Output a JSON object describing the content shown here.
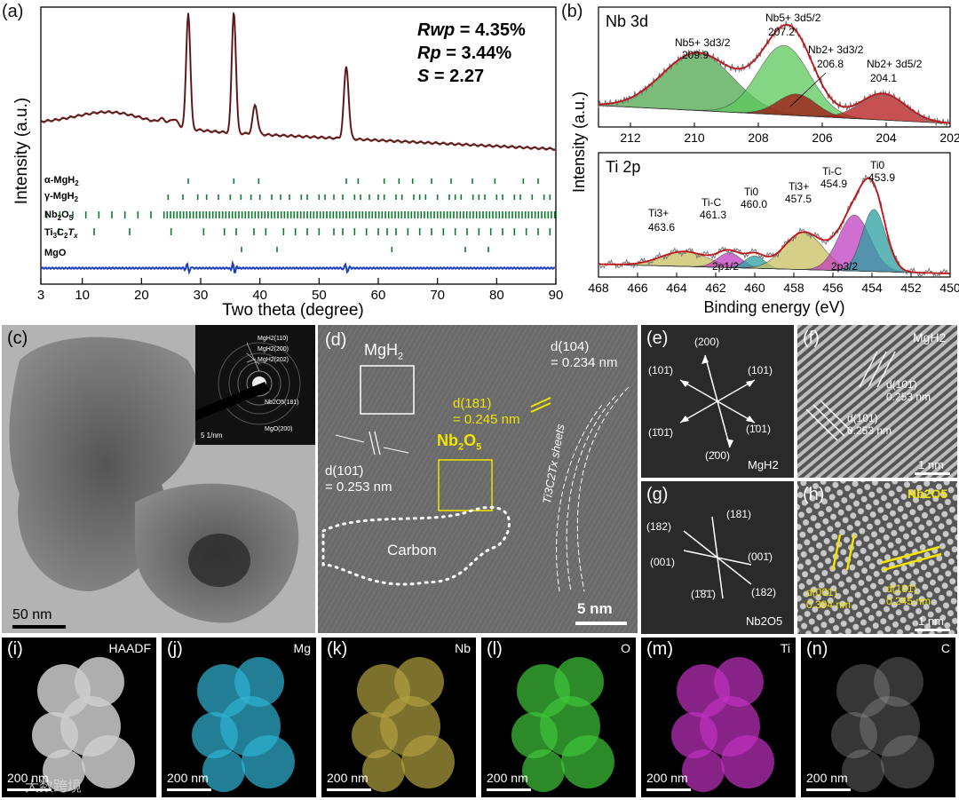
{
  "panel_labels": {
    "a": "(a)",
    "b": "(b)",
    "c": "(c)",
    "d": "(d)",
    "e": "(e)",
    "f": "(f)",
    "g": "(g)",
    "h": "(h)",
    "i": "(i)",
    "j": "(j)",
    "k": "(k)",
    "l": "(l)",
    "m": "(m)",
    "n": "(n)"
  },
  "xrd": {
    "rwp_label": "Rwp",
    "rwp_value": "= 4.35%",
    "rp_label": "Rp",
    "rp_value": "= 3.44%",
    "s_label": "S",
    "s_value": "= 2.27",
    "phases": [
      "α-MgH2",
      "γ-MgH2",
      "Nb2O5",
      "Ti3C2Tx",
      "MgO"
    ],
    "phase_labels": {
      "a_mgh2": "α-MgH",
      "g_mgh2": "γ-MgH",
      "nb2o5": "Nb",
      "ti3c2": "Ti",
      "mgo": "MgO",
      "sub2": "2",
      "sub5": "5",
      "sub3": "3",
      "subx": "x",
      "o": "O",
      "c": "C",
      "t": "T"
    }
  },
  "xps": {
    "y_label": "Intensity (a.u.)",
    "nb_title": "Nb 3d",
    "ti_title": "Ti 2p",
    "x_label": "Binding energy (eV)",
    "nb_peaks": [
      {
        "label": "Nb5+ 3d3/2",
        "value": "209.9"
      },
      {
        "label": "Nb5+ 3d5/2",
        "value": "207.2"
      },
      {
        "label": "Nb2+ 3d3/2",
        "value": "206.8"
      },
      {
        "label": "Nb2+ 3d5/2",
        "value": "204.1"
      }
    ],
    "ti_peaks": [
      {
        "label": "Ti3+",
        "value": "463.6"
      },
      {
        "label": "Ti-C",
        "value": "461.3"
      },
      {
        "label": "Ti0",
        "value": "460.0"
      },
      {
        "label": "Ti3+",
        "value": "457.5"
      },
      {
        "label": "Ti-C",
        "value": "454.9"
      },
      {
        "label": "Ti0",
        "value": "453.9"
      }
    ],
    "ti_groups": [
      "2p1/2",
      "2p3/2"
    ]
  },
  "chart_data": [
    {
      "type": "line",
      "title": "XRD refinement",
      "xlabel": "Two theta (degree)",
      "ylabel": "Intensity (a.u.)",
      "xlim": [
        3,
        90
      ],
      "x_ticks": [
        3,
        10,
        20,
        30,
        40,
        50,
        60,
        70,
        80,
        90
      ],
      "series": [
        {
          "name": "observed/calculated",
          "x": [
            3,
            10,
            20,
            25,
            27.9,
            30,
            35.6,
            39.2,
            45,
            54.6,
            60,
            70,
            80,
            90
          ],
          "values": [
            0.55,
            0.5,
            0.55,
            0.48,
            1.0,
            0.4,
            1.0,
            0.55,
            0.33,
            0.72,
            0.3,
            0.27,
            0.24,
            0.22
          ]
        },
        {
          "name": "difference",
          "x": [
            3,
            27.9,
            35.6,
            54.6,
            90
          ],
          "values": [
            0,
            0.08,
            0.06,
            0.05,
            0
          ]
        }
      ]
    },
    {
      "type": "line",
      "title": "Nb 3d",
      "xlabel": "Binding energy (eV)",
      "ylabel": "Intensity (a.u.)",
      "xlim": [
        213,
        202
      ],
      "x_ticks": [
        212,
        210,
        208,
        206,
        204,
        202
      ],
      "series": [
        {
          "name": "Nb5+ 3d3/2",
          "center": 209.9
        },
        {
          "name": "Nb5+ 3d5/2",
          "center": 207.2
        },
        {
          "name": "Nb2+ 3d3/2",
          "center": 206.8
        },
        {
          "name": "Nb2+ 3d5/2",
          "center": 204.1
        }
      ]
    },
    {
      "type": "line",
      "title": "Ti 2p",
      "xlabel": "Binding energy (eV)",
      "ylabel": "Intensity (a.u.)",
      "xlim": [
        468,
        450
      ],
      "x_ticks": [
        468,
        466,
        464,
        462,
        460,
        458,
        456,
        454,
        452,
        450
      ],
      "series": [
        {
          "name": "Ti3+",
          "center": 463.6
        },
        {
          "name": "Ti-C",
          "center": 461.3
        },
        {
          "name": "Ti0",
          "center": 460.0
        },
        {
          "name": "Ti3+",
          "center": 457.5
        },
        {
          "name": "Ti-C",
          "center": 454.9
        },
        {
          "name": "Ti0",
          "center": 453.9
        }
      ]
    }
  ],
  "tem": {
    "scale_c": "50 nm",
    "saed_rings": [
      "MgH2(110)",
      "MgH2(200)",
      "MgH2(202)",
      "Nb2O5(181)",
      "MgO(200)"
    ],
    "saed_scale": "5 1/nm"
  },
  "hrtem": {
    "mgh2": "MgH",
    "sub2": "2",
    "d104": "d(104)",
    "d104_val": "= 0.234 nm",
    "d181": "d(181)",
    "d181_val": "= 0.245 nm",
    "nb2o5": "Nb",
    "nb_sub2": "2",
    "nb_o": "O",
    "nb_sub5": "5",
    "d101": "d(101̄)",
    "d101_val": "= 0.253 nm",
    "carbon": "Carbon",
    "sheets": "Ti3C2Tx sheets",
    "scale": "5 nm"
  },
  "fft_e": {
    "spots": [
      "(200)",
      "(101̄)",
      "(101)",
      "(1̄01̄)",
      "(1̄01)",
      "(2̄00)"
    ],
    "phase": "MgH2"
  },
  "ifft_f": {
    "phase": "MgH2",
    "d1": "d(101̄)",
    "d1_val": "0.253 nm",
    "d2": "d(101)",
    "d2_val": "0.253 nm",
    "scale": "1 nm"
  },
  "fft_g": {
    "spots": [
      "(181)",
      "(182)",
      "(001)",
      "(001̄)",
      "(1̄8̄1̄)",
      "(182)"
    ],
    "phase": "Nb2O5"
  },
  "ifft_h": {
    "phase": "Nb2O5",
    "d1": "d(001)",
    "d1_val": "0.394 nm",
    "d2": "d(181)",
    "d2_val": "0.245 nm",
    "scale": "1 nm"
  },
  "eds": {
    "maps": [
      {
        "name": "HAADF",
        "scale": "200 nm"
      },
      {
        "name": "Mg",
        "scale": "200 nm"
      },
      {
        "name": "Nb",
        "scale": "200 nm"
      },
      {
        "name": "O",
        "scale": "200 nm"
      },
      {
        "name": "Ti",
        "scale": "200 nm"
      },
      {
        "name": "C",
        "scale": "200 nm"
      }
    ],
    "colors": {
      "mg": "#2fb4d4",
      "nb": "#b0a040",
      "o": "#3ec43a",
      "ti": "#c030c0",
      "c": "#9a9a9a"
    }
  },
  "watermark": "大数跨境"
}
